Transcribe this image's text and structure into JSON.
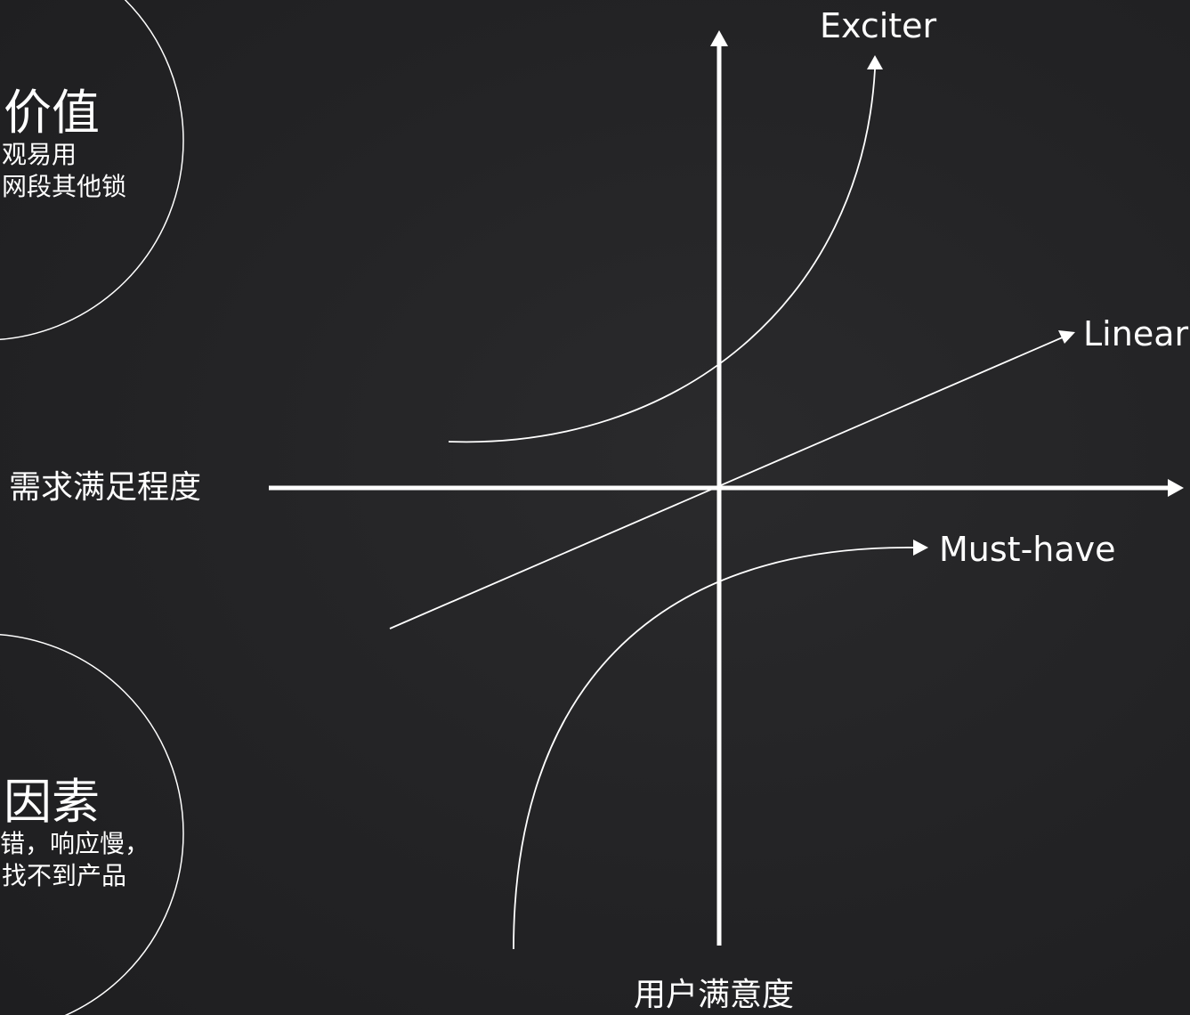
{
  "circles": {
    "top": {
      "title": "价值",
      "lines": [
        "观易用",
        "网段其他锁"
      ]
    },
    "bottom": {
      "title": "因素",
      "lines": [
        "错，响应慢，",
        "找不到产品"
      ]
    }
  },
  "axes": {
    "x_label": "需求满足程度",
    "y_label": "用户满意度"
  },
  "curves": {
    "exciter": "Exciter",
    "linear": "Linear",
    "must_have": "Must-have"
  },
  "colors": {
    "background": "#222224",
    "foreground": "#ffffff"
  }
}
